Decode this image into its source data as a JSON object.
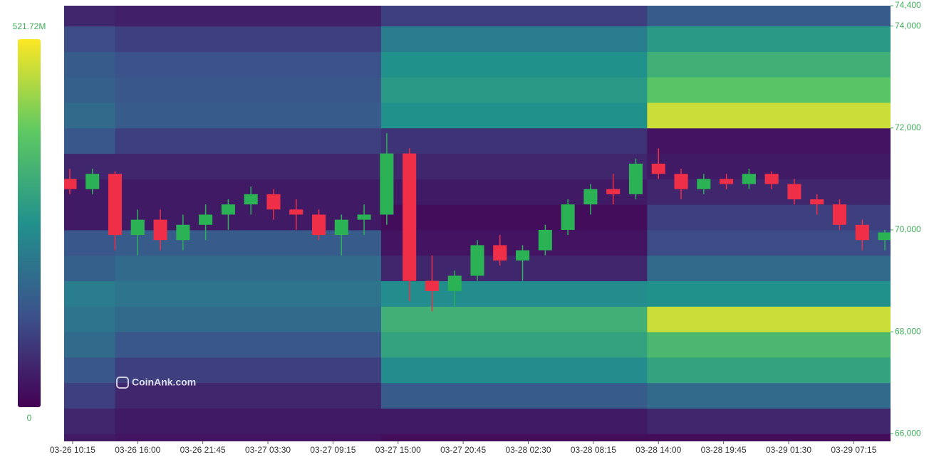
{
  "chart_data": {
    "type": "heatmap-candlestick",
    "watermark": "CoinAnk.com",
    "colorbar": {
      "max": {
        "value": 521.72,
        "label": "521.72M"
      },
      "min": 0
    },
    "colorscale": [
      "#440154",
      "#3b528b",
      "#21918c",
      "#5ec962",
      "#fde725"
    ],
    "up_color": "#2bb255",
    "down_color": "#ef2f47",
    "ylim": [
      65850,
      74400
    ],
    "yticks": [
      {
        "value": 66000,
        "label": "66,000"
      },
      {
        "value": 68000,
        "label": "68,000"
      },
      {
        "value": 70000,
        "label": "70,000"
      },
      {
        "value": 72000,
        "label": "72,000"
      },
      {
        "value": 74000,
        "label": "74,000"
      },
      {
        "value": 74400,
        "label": "74,400"
      }
    ],
    "xlim": [
      "03-26 09:30",
      "03-29 10:30"
    ],
    "xticks": [
      "03-26 10:15",
      "03-26 16:00",
      "03-26 21:45",
      "03-27 03:30",
      "03-27 09:15",
      "03-27 15:00",
      "03-27 20:45",
      "03-28 02:30",
      "03-28 08:15",
      "03-28 14:00",
      "03-28 19:45",
      "03-29 01:30",
      "03-29 07:15"
    ],
    "heatmap": {
      "segments": [
        "03-26 09:30",
        "03-26 14:00",
        "03-27 13:30",
        "03-28 13:00"
      ],
      "levels": [
        65500,
        66000,
        66500,
        67000,
        67500,
        68000,
        68500,
        69000,
        69500,
        70000,
        70500,
        71000,
        71500,
        72000,
        72500,
        73000,
        73500,
        74000
      ],
      "values": [
        [
          40,
          30,
          20,
          20
        ],
        [
          60,
          40,
          40,
          60
        ],
        [
          100,
          60,
          150,
          180
        ],
        [
          140,
          100,
          250,
          300
        ],
        [
          180,
          140,
          300,
          350
        ],
        [
          200,
          180,
          330,
          480
        ],
        [
          220,
          200,
          250,
          260
        ],
        [
          160,
          180,
          60,
          180
        ],
        [
          140,
          150,
          30,
          120
        ],
        [
          40,
          40,
          20,
          100
        ],
        [
          40,
          40,
          40,
          60
        ],
        [
          60,
          60,
          60,
          40
        ],
        [
          140,
          100,
          80,
          30
        ],
        [
          180,
          150,
          260,
          480
        ],
        [
          160,
          140,
          280,
          380
        ],
        [
          150,
          130,
          260,
          330
        ],
        [
          120,
          100,
          220,
          280
        ],
        [
          60,
          50,
          100,
          150
        ]
      ]
    },
    "candles": {
      "x": [
        "03-26 10:00",
        "03-26 12:00",
        "03-26 14:00",
        "03-26 16:00",
        "03-26 18:00",
        "03-26 20:00",
        "03-26 22:00",
        "03-27 00:00",
        "03-27 02:00",
        "03-27 04:00",
        "03-27 06:00",
        "03-27 08:00",
        "03-27 10:00",
        "03-27 12:00",
        "03-27 14:00",
        "03-27 16:00",
        "03-27 18:00",
        "03-27 20:00",
        "03-27 22:00",
        "03-28 00:00",
        "03-28 02:00",
        "03-28 04:00",
        "03-28 06:00",
        "03-28 08:00",
        "03-28 10:00",
        "03-28 12:00",
        "03-28 14:00",
        "03-28 16:00",
        "03-28 18:00",
        "03-28 20:00",
        "03-28 22:00",
        "03-29 00:00",
        "03-29 02:00",
        "03-29 04:00",
        "03-29 06:00",
        "03-29 08:00",
        "03-29 10:00"
      ],
      "open": [
        71000,
        70800,
        71100,
        69900,
        70200,
        69800,
        70100,
        70300,
        70500,
        70700,
        70400,
        70300,
        69900,
        70200,
        70300,
        71500,
        69000,
        68800,
        69100,
        69700,
        69400,
        69600,
        70000,
        70500,
        70800,
        70700,
        71300,
        71100,
        70800,
        71000,
        70900,
        71100,
        70900,
        70600,
        70500,
        70100,
        69800
      ],
      "high": [
        71200,
        71200,
        71150,
        70400,
        70400,
        70300,
        70500,
        70600,
        70850,
        70800,
        70600,
        70400,
        70300,
        70500,
        71900,
        71600,
        69500,
        69200,
        69800,
        69900,
        69700,
        70100,
        70600,
        70900,
        71100,
        71400,
        71600,
        71200,
        71100,
        71100,
        71200,
        71150,
        71000,
        70700,
        70600,
        70200,
        70000
      ],
      "low": [
        70700,
        70700,
        69600,
        69500,
        69600,
        69600,
        69800,
        70000,
        70300,
        70200,
        70000,
        69800,
        69500,
        69900,
        70100,
        68600,
        68400,
        68500,
        69000,
        69300,
        69000,
        69500,
        69900,
        70300,
        70500,
        70600,
        71000,
        70600,
        70700,
        70800,
        70800,
        70800,
        70500,
        70300,
        70000,
        69600,
        69600
      ],
      "close": [
        70800,
        71100,
        69900,
        70200,
        69800,
        70100,
        70300,
        70500,
        70700,
        70400,
        70300,
        69900,
        70200,
        70300,
        71500,
        69000,
        68800,
        69100,
        69700,
        69400,
        69600,
        70000,
        70500,
        70800,
        70700,
        71300,
        71100,
        70800,
        71000,
        70900,
        71100,
        70900,
        70600,
        70500,
        70100,
        69800,
        69950
      ]
    }
  }
}
